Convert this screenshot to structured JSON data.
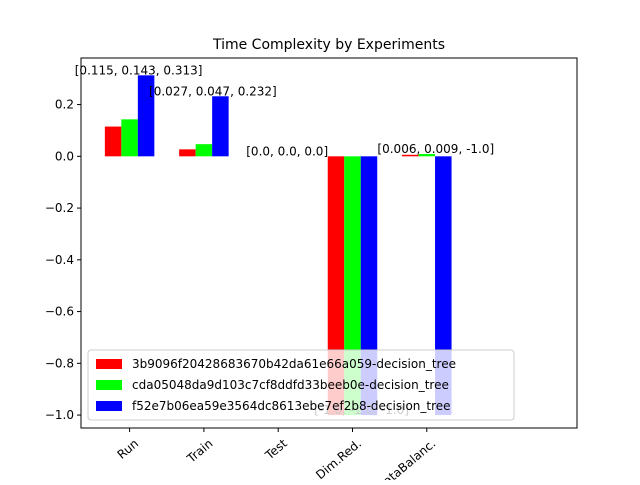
{
  "chart_data": {
    "type": "bar",
    "title": "Time Complexity by Experiments",
    "xlabel": "",
    "ylabel": "",
    "categories": [
      "Run",
      "Train",
      "Test",
      "Dim.Red.",
      "DataBalanc."
    ],
    "ylim": [
      -1.05,
      0.38
    ],
    "yticks": [
      -1.0,
      -0.8,
      -0.6,
      -0.4,
      -0.2,
      0.0,
      0.2
    ],
    "ytick_labels": [
      "−1.0",
      "−0.8",
      "−0.6",
      "−0.4",
      "−0.2",
      "0.0",
      "0.2"
    ],
    "grid": false,
    "legend_position": "lower-left",
    "series": [
      {
        "name": "3b9096f20428683670b42da61e66a059-decision_tree",
        "color": "#ff0000",
        "values": [
          0.115,
          0.027,
          0.0,
          -1.0,
          0.006
        ]
      },
      {
        "name": "cda05048da9d103c7cf8ddfd33beeb0e-decision_tree",
        "color": "#00ff00",
        "values": [
          0.143,
          0.047,
          0.0,
          -1.0,
          0.009
        ]
      },
      {
        "name": "f52e7b06ea59e3564dc8613ebe7ef2b8-decision_tree",
        "color": "#0000ff",
        "values": [
          0.313,
          0.232,
          0.0,
          -1.0,
          -1.0
        ]
      }
    ],
    "data_labels": [
      "[0.115, 0.143, 0.313]",
      "[0.027, 0.047, 0.232]",
      "[0.0, 0.0, 0.0]",
      "[-1.0, -1.0, -1.0]",
      "[0.006, 0.009, -1.0]"
    ]
  }
}
